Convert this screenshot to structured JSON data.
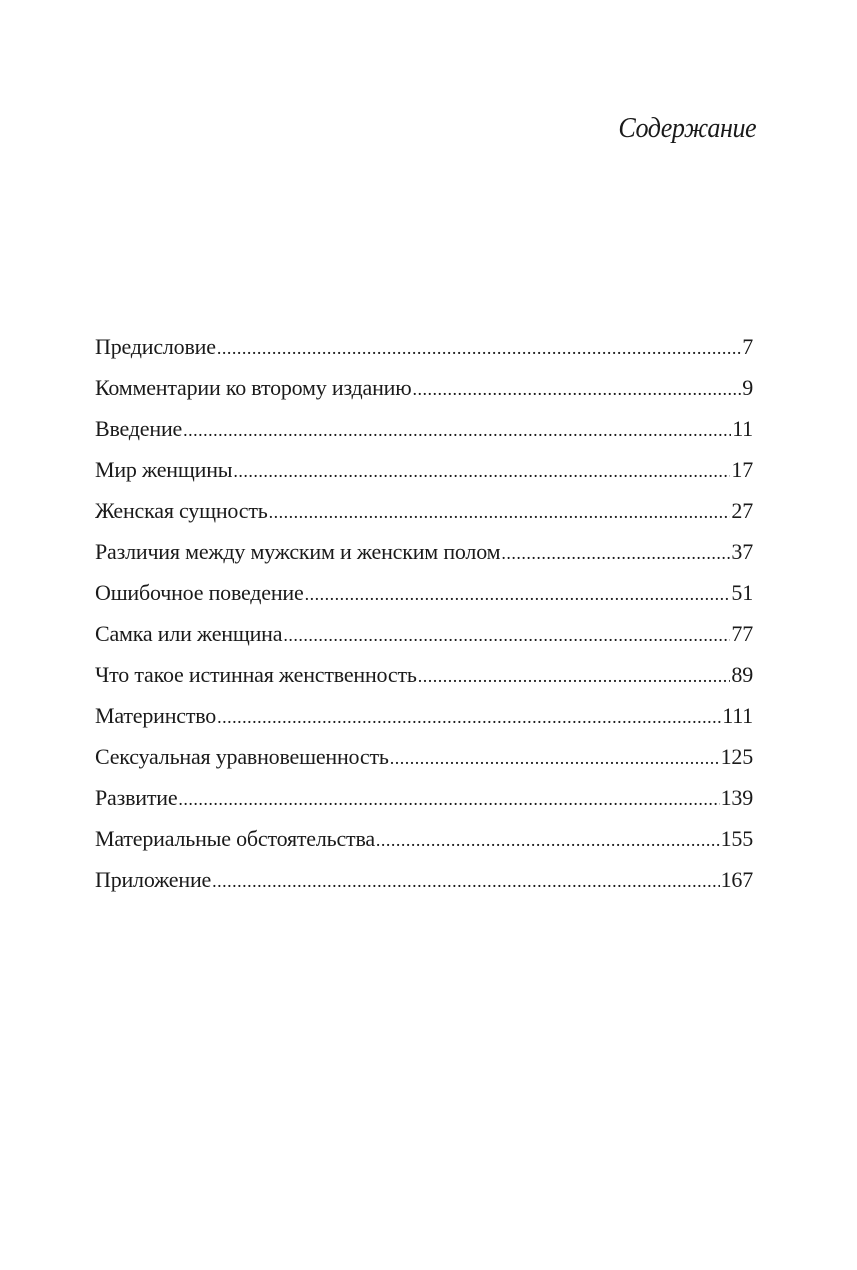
{
  "title": "Содержание",
  "entries": [
    {
      "label": "Предисловие",
      "page": "7"
    },
    {
      "label": "Комментарии ко второму изданию",
      "page": "9"
    },
    {
      "label": "Введение",
      "page": "11"
    },
    {
      "label": "Мир женщины",
      "page": "17"
    },
    {
      "label": "Женская сущность",
      "page": "27"
    },
    {
      "label": "Различия между мужским и женским полом",
      "page": "37"
    },
    {
      "label": "Ошибочное поведение",
      "page": "51"
    },
    {
      "label": "Самка или женщина",
      "page": "77"
    },
    {
      "label": "Что такое истинная женственность",
      "page": "89"
    },
    {
      "label": "Материнство",
      "page": "111"
    },
    {
      "label": "Сексуальная уравновешенность",
      "page": "125"
    },
    {
      "label": "Развитие",
      "page": "139"
    },
    {
      "label": "Материальные обстоятельства",
      "page": "155"
    },
    {
      "label": "Приложение",
      "page": "167"
    }
  ]
}
